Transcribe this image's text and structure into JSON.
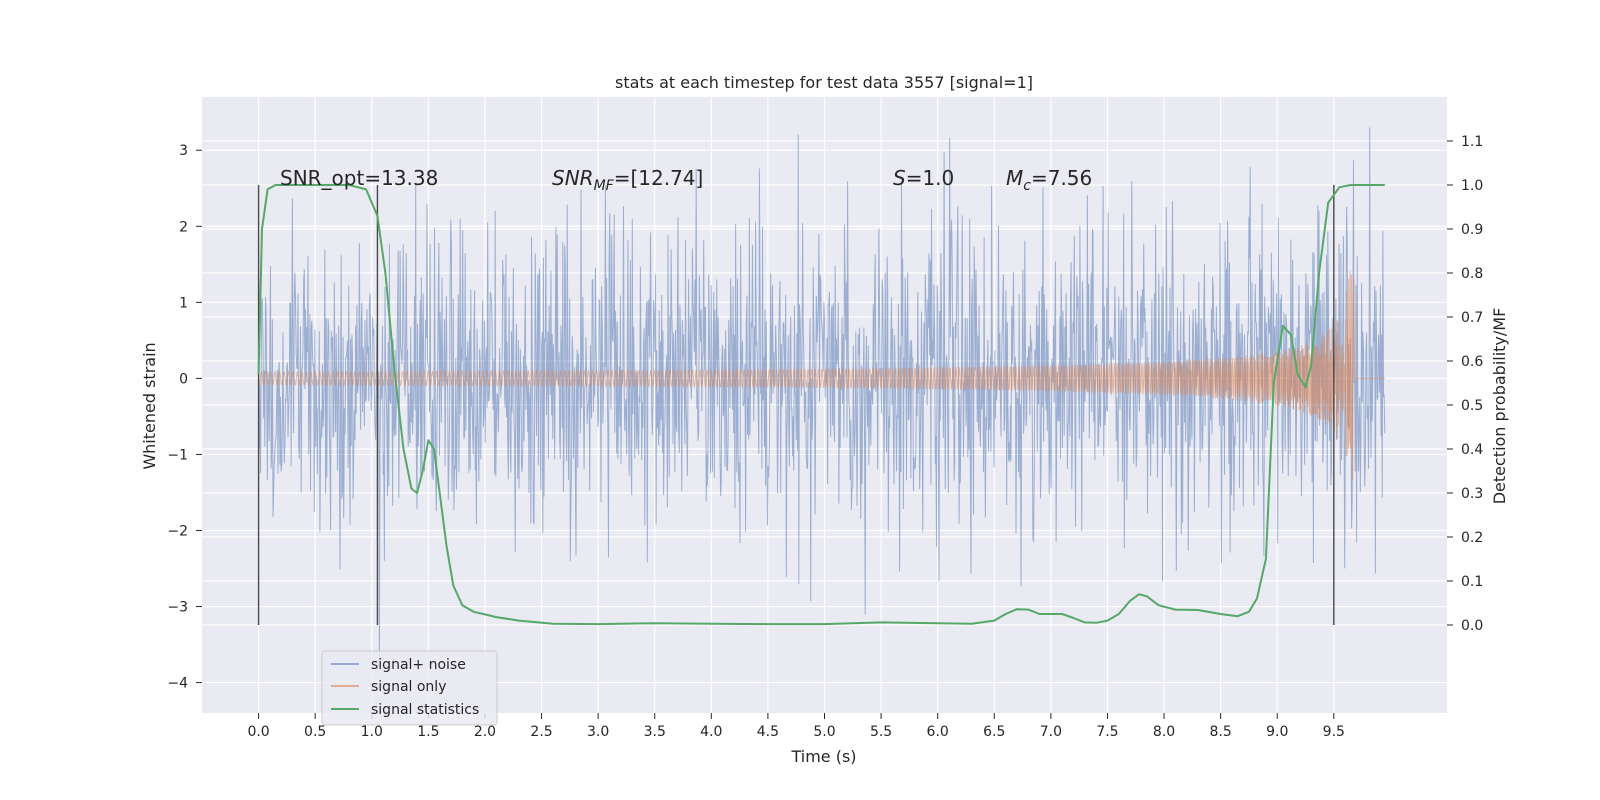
{
  "chart_data": {
    "type": "line",
    "title": "stats at each timestep for test data 3557 [signal=1]",
    "xlabel": "Time (s)",
    "ylabel_left": "Whitened strain",
    "ylabel_right": "Detection probability/MF",
    "xlim": [
      -0.5,
      10.5
    ],
    "ylim_left": [
      -4.4,
      3.7
    ],
    "ylim_right": [
      -0.2,
      1.2
    ],
    "x_ticks": [
      0.0,
      0.5,
      1.0,
      1.5,
      2.0,
      2.5,
      3.0,
      3.5,
      4.0,
      4.5,
      5.0,
      5.5,
      6.0,
      6.5,
      7.0,
      7.5,
      8.0,
      8.5,
      9.0,
      9.5
    ],
    "x_tick_labels": [
      "0.0",
      "0.5",
      "1.0",
      "1.5",
      "2.0",
      "2.5",
      "3.0",
      "3.5",
      "4.0",
      "4.5",
      "5.0",
      "5.5",
      "6.0",
      "6.5",
      "7.0",
      "7.5",
      "8.0",
      "8.5",
      "9.0",
      "9.5"
    ],
    "y_left_ticks": [
      3,
      2,
      1,
      0,
      -1,
      -2,
      -3,
      -4
    ],
    "y_left_tick_labels": [
      "3",
      "2",
      "1",
      "0",
      "−1",
      "−2",
      "−3",
      "−4"
    ],
    "y_right_ticks": [
      1.1,
      1.0,
      0.9,
      0.8,
      0.7,
      0.6,
      0.5,
      0.4,
      0.3,
      0.2,
      0.1,
      0.0
    ],
    "y_right_tick_labels": [
      "1.1",
      "1.0",
      "0.9",
      "0.8",
      "0.7",
      "0.6",
      "0.5",
      "0.4",
      "0.3",
      "0.2",
      "0.1",
      "0.0"
    ],
    "grid": true,
    "legend_position": "bottom-left",
    "annotations": {
      "snr_opt": "SNR_opt=13.38",
      "snr_mf_main": "SNR",
      "snr_mf_sub": "MF",
      "snr_mf_rest": "=[12.74]",
      "s_main": "S",
      "s_rest": "=1.0",
      "mc_main": "M",
      "mc_sub": "c",
      "mc_rest": "=7.56"
    },
    "series": [
      {
        "name": "signal+ noise",
        "color": "#4c72b0",
        "kind": "noise",
        "x_range": [
          0.0,
          9.95
        ],
        "approx_range": [
          -4.05,
          3.3
        ]
      },
      {
        "name": "signal only",
        "color": "#dd8452",
        "kind": "chirp",
        "x_range": [
          0.0,
          9.95
        ],
        "amplitude_at_9_65": 1.55
      },
      {
        "name": "signal statistics",
        "color": "#55a868",
        "axis": "right",
        "x": [
          0.0,
          0.03,
          0.08,
          0.15,
          0.25,
          0.5,
          0.8,
          0.95,
          1.05,
          1.12,
          1.2,
          1.28,
          1.35,
          1.4,
          1.45,
          1.5,
          1.55,
          1.6,
          1.66,
          1.72,
          1.8,
          1.9,
          2.0,
          2.1,
          2.3,
          2.6,
          3.0,
          3.5,
          4.0,
          4.5,
          5.0,
          5.5,
          6.0,
          6.3,
          6.5,
          6.6,
          6.7,
          6.8,
          6.9,
          7.0,
          7.1,
          7.2,
          7.3,
          7.4,
          7.5,
          7.6,
          7.7,
          7.78,
          7.85,
          7.95,
          8.1,
          8.3,
          8.5,
          8.65,
          8.75,
          8.82,
          8.9,
          8.97,
          9.05,
          9.12,
          9.18,
          9.25,
          9.3,
          9.37,
          9.45,
          9.55,
          9.65,
          9.8,
          9.95
        ],
        "values": [
          0.57,
          0.9,
          0.99,
          1.0,
          1.0,
          1.0,
          1.0,
          0.99,
          0.93,
          0.8,
          0.58,
          0.4,
          0.31,
          0.3,
          0.35,
          0.42,
          0.4,
          0.3,
          0.18,
          0.09,
          0.045,
          0.03,
          0.024,
          0.018,
          0.01,
          0.003,
          0.002,
          0.004,
          0.003,
          0.002,
          0.002,
          0.006,
          0.004,
          0.003,
          0.01,
          0.025,
          0.036,
          0.035,
          0.025,
          0.025,
          0.025,
          0.016,
          0.006,
          0.005,
          0.01,
          0.025,
          0.055,
          0.07,
          0.065,
          0.045,
          0.035,
          0.034,
          0.025,
          0.02,
          0.03,
          0.06,
          0.15,
          0.55,
          0.68,
          0.66,
          0.57,
          0.54,
          0.59,
          0.8,
          0.96,
          0.995,
          1.0,
          1.0,
          1.0
        ]
      }
    ],
    "vertical_lines_x": [
      0.0,
      1.05,
      9.5
    ]
  }
}
